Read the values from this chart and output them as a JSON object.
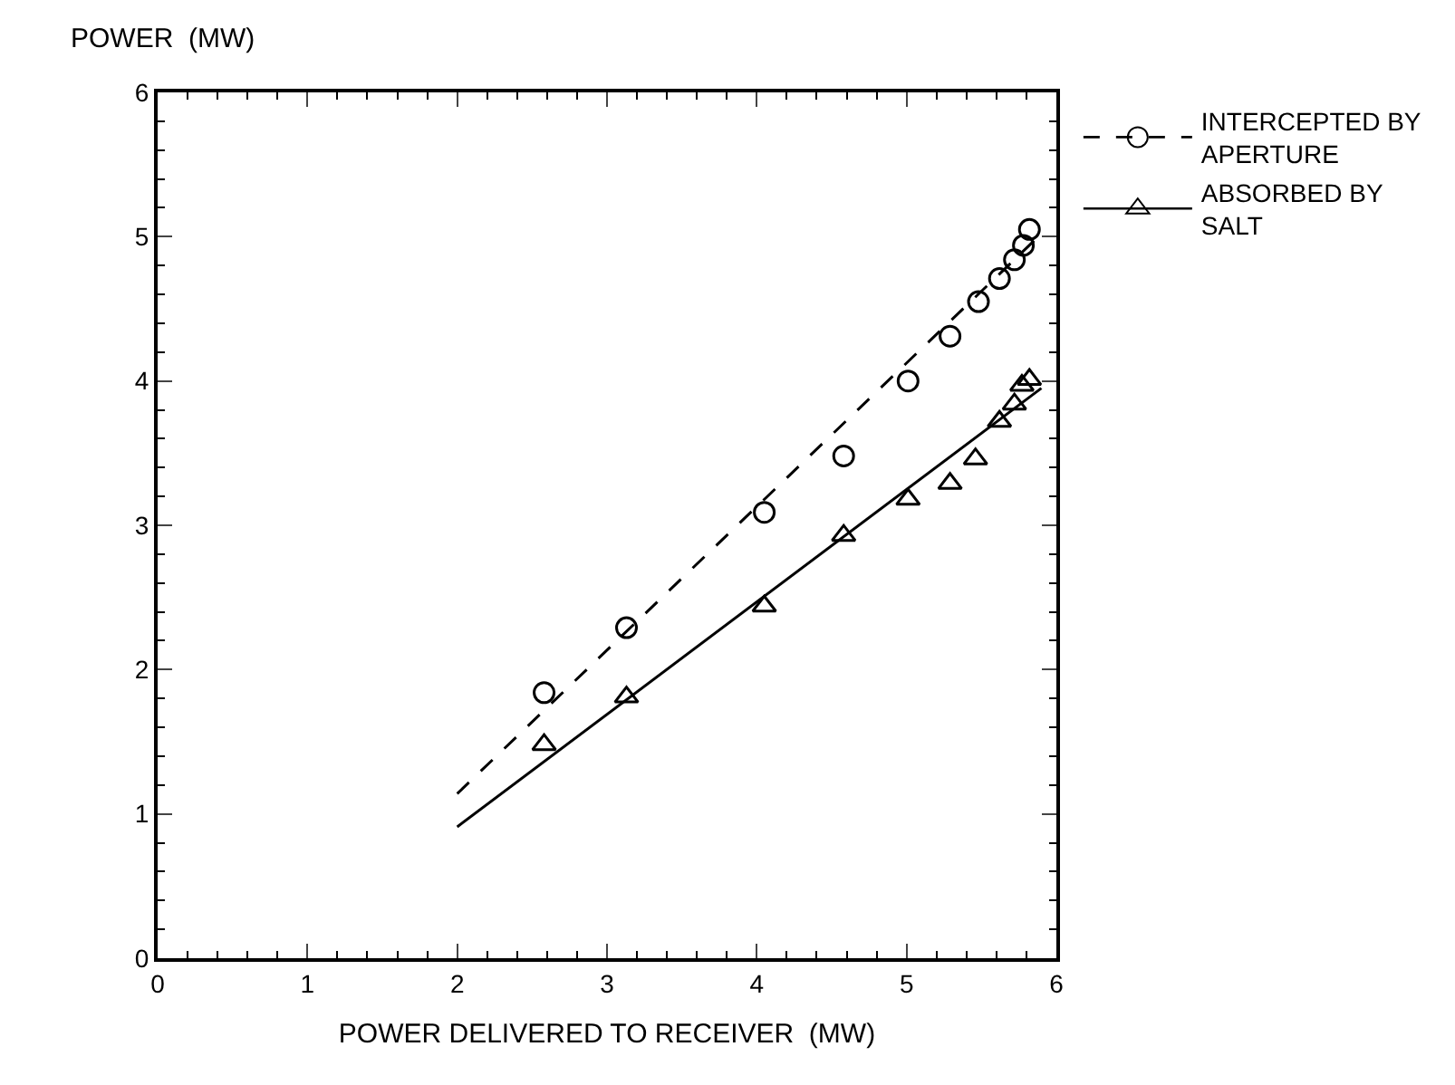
{
  "chart_data": {
    "type": "scatter",
    "xlabel": "POWER DELIVERED TO RECEIVER  (MW)",
    "ylabel": "POWER  (MW)",
    "xlim": [
      0,
      6
    ],
    "xticks": [
      0,
      1,
      2,
      3,
      4,
      5,
      6
    ],
    "ylim": [
      0,
      6
    ],
    "yticks": [
      0,
      1,
      2,
      3,
      4,
      5,
      6
    ],
    "legend": "top right",
    "series": [
      {
        "name": "INTERCEPTED BY\nAPERTURE",
        "color": "#000000",
        "marker": "circle",
        "line_style": "dashed",
        "x": [
          2.58,
          3.13,
          4.05,
          4.58,
          5.01,
          5.29,
          5.48,
          5.62,
          5.72,
          5.78,
          5.82
        ],
        "values": [
          1.84,
          2.29,
          3.09,
          3.48,
          4.0,
          4.31,
          4.55,
          4.71,
          4.84,
          4.94,
          5.05
        ]
      },
      {
        "name": "ABSORBED BY\nSALT",
        "color": "#000000",
        "marker": "triangle",
        "line_style": "solid",
        "x": [
          2.58,
          3.13,
          4.05,
          4.58,
          5.01,
          5.29,
          5.46,
          5.62,
          5.72,
          5.77,
          5.82
        ],
        "values": [
          1.48,
          1.81,
          2.44,
          2.93,
          3.18,
          3.29,
          3.46,
          3.72,
          3.84,
          3.97,
          4.01
        ]
      },
      {
        "type": "line",
        "color": "#000000",
        "line_style": "dashed",
        "x": [
          2,
          5.9
        ],
        "values": [
          1.14,
          5.02
        ]
      },
      {
        "type": "line",
        "color": "#000000",
        "line_style": "solid",
        "x": [
          2,
          5.9
        ],
        "values": [
          0.91,
          3.95
        ]
      }
    ]
  }
}
